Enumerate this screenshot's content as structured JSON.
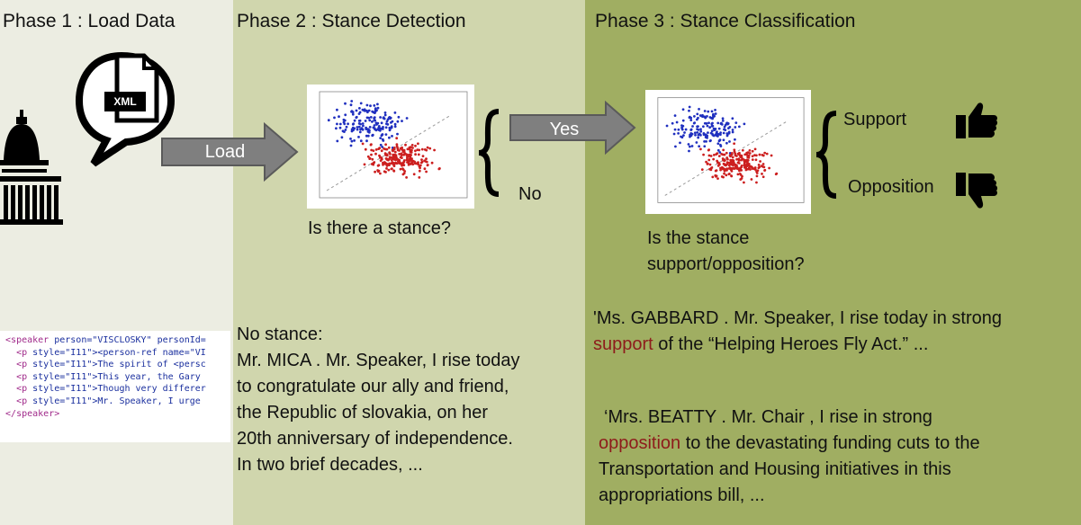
{
  "phases": [
    {
      "title": "Phase 1 : Load Data"
    },
    {
      "title": "Phase 2 : Stance Detection"
    },
    {
      "title": "Phase 3 : Stance Classification"
    }
  ],
  "phase1": {
    "xml_badge": "XML",
    "arrow_label": "Load",
    "code_lines": [
      {
        "indent": "",
        "tag": "<speaker",
        "rest": " person=\"VISCLOSKY\" personId="
      },
      {
        "indent": "  ",
        "tag": "<p",
        "rest": " style=\"I11\"><person-ref name=\"VI"
      },
      {
        "indent": "  ",
        "tag": "<p",
        "rest": " style=\"I11\">The spirit of <persc"
      },
      {
        "indent": "  ",
        "tag": "<p",
        "rest": " style=\"I11\">This year, the Gary "
      },
      {
        "indent": "  ",
        "tag": "<p",
        "rest": " style=\"I11\">Though very differer"
      },
      {
        "indent": "  ",
        "tag": "<p",
        "rest": " style=\"I11\">Mr. Speaker, I urge "
      },
      {
        "indent": "",
        "tag": "</speaker>",
        "rest": ""
      }
    ]
  },
  "phase2": {
    "question": "Is there a stance?",
    "yes_label": "Yes",
    "no_label": "No",
    "no_stance_heading": "No stance:",
    "example_lines": [
      "Mr. MICA . Mr. Speaker, I rise today",
      "to congratulate our ally and friend,",
      "the Republic of slovakia, on her",
      "20th anniversary of independence.",
      "In two brief decades, ..."
    ]
  },
  "phase3": {
    "question_line1": "Is the stance",
    "question_line2": "support/opposition?",
    "support_label": "Support",
    "opposition_label": "Opposition",
    "example1": {
      "line1": "'Ms. GABBARD . Mr. Speaker, I rise today in strong",
      "highlight": "support",
      "line2_rest": " of the “Helping Heroes Fly Act.” ..."
    },
    "example2": {
      "line1": "‘Mrs. BEATTY . Mr. Chair , I rise in strong",
      "highlight": "opposition",
      "line2_rest": " to the devastating funding cuts to the",
      "line3": "Transportation and Housing initiatives in this",
      "line4": "appropriations bill, ..."
    }
  },
  "colors": {
    "phase1_bg": "#ecede2",
    "phase2_bg": "#d0d6ad",
    "phase3_bg": "#a0ae62",
    "arrow": "#7f7f7f",
    "highlight": "#8e1b1b",
    "scatter_blue": "#1f2fbf",
    "scatter_red": "#cc1f1f"
  }
}
